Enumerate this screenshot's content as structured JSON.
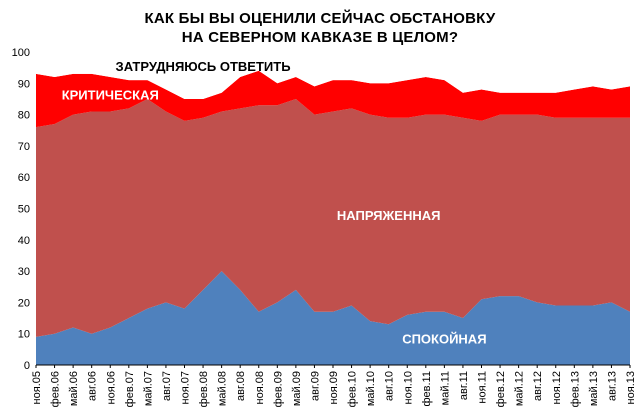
{
  "chart_data": {
    "type": "area",
    "stacked": true,
    "title": "КАК БЫ ВЫ ОЦЕНИЛИ СЕЙЧАС ОБСТАНОВКУ НА СЕВЕРНОМ КАВКАЗЕ В ЦЕЛОМ?",
    "title_lines": [
      "КАК БЫ ВЫ ОЦЕНИЛИ СЕЙЧАС ОБСТАНОВКУ",
      "НА СЕВЕРНОМ КАВКАЗЕ В ЦЕЛОМ?"
    ],
    "xlabel": "",
    "ylabel": "",
    "ylim": [
      0,
      100
    ],
    "yticks": [
      0,
      10,
      20,
      30,
      40,
      50,
      60,
      70,
      80,
      90,
      100
    ],
    "grid": false,
    "x_tick_labels": [
      "ноя.05",
      "фев.06",
      "май.06",
      "авг.06",
      "ноя.06",
      "фев.07",
      "май.07",
      "авг.07",
      "ноя.07",
      "фев.08",
      "май.08",
      "авг.08",
      "ноя.08",
      "фев.09",
      "май.09",
      "авг.09",
      "ноя.09",
      "фев.10",
      "май.10",
      "авг.10",
      "ноя.10",
      "фев.11",
      "май.11",
      "авг.11",
      "ноя.11",
      "фев.12",
      "май.12",
      "авг.12",
      "ноя.12",
      "фев.13",
      "май.13",
      "авг.13",
      "ноя.13"
    ],
    "x": [
      "ноя.05",
      "фев.06",
      "май.06",
      "авг.06",
      "ноя.06",
      "фев.07",
      "май.07",
      "авг.07",
      "ноя.07",
      "фев.08",
      "май.08",
      "авг.08",
      "ноя.08",
      "фев.09",
      "май.09",
      "авг.09",
      "ноя.09",
      "фев.10",
      "май.10",
      "авг.10",
      "ноя.10",
      "фев.11",
      "май.11",
      "авг.11",
      "ноя.11",
      "фев.12",
      "май.12",
      "авг.12",
      "ноя.12",
      "фев.13",
      "май.13",
      "авг.13",
      "ноя.13"
    ],
    "series": [
      {
        "name": "СПОКОЙНАЯ",
        "color": "#4f81bd",
        "label_color": "#ffffff",
        "values": [
          9,
          10,
          12,
          10,
          12,
          15,
          18,
          20,
          18,
          24,
          30,
          24,
          17,
          20,
          24,
          17,
          17,
          19,
          14,
          13,
          16,
          17,
          17,
          15,
          21,
          22,
          22,
          20,
          19,
          19,
          19,
          20,
          17
        ]
      },
      {
        "name": "НАПРЯЖЕННАЯ",
        "color": "#c0504d",
        "label_color": "#ffffff",
        "values": [
          67,
          67,
          68,
          71,
          69,
          67,
          67,
          61,
          60,
          55,
          51,
          58,
          66,
          63,
          61,
          63,
          64,
          63,
          66,
          66,
          63,
          63,
          63,
          64,
          57,
          58,
          58,
          60,
          60,
          60,
          60,
          59,
          62
        ]
      },
      {
        "name": "КРИТИЧЕСКАЯ",
        "color": "#ff0000",
        "label_color": "#ffffff",
        "values": [
          17,
          15,
          13,
          12,
          11,
          9,
          6,
          7,
          7,
          6,
          6,
          10,
          11,
          7,
          7,
          9,
          10,
          9,
          10,
          11,
          12,
          12,
          11,
          8,
          10,
          7,
          7,
          7,
          8,
          9,
          10,
          9,
          10
        ]
      },
      {
        "name": "ЗАТРУДНЯЮСЬ ОТВЕТИТЬ",
        "color": "#ffffff",
        "label_color": "#000000",
        "values": [
          7,
          8,
          7,
          7,
          8,
          9,
          9,
          12,
          15,
          15,
          13,
          8,
          6,
          10,
          8,
          11,
          9,
          9,
          10,
          10,
          9,
          8,
          9,
          13,
          12,
          13,
          13,
          13,
          13,
          12,
          11,
          12,
          11
        ]
      }
    ]
  }
}
